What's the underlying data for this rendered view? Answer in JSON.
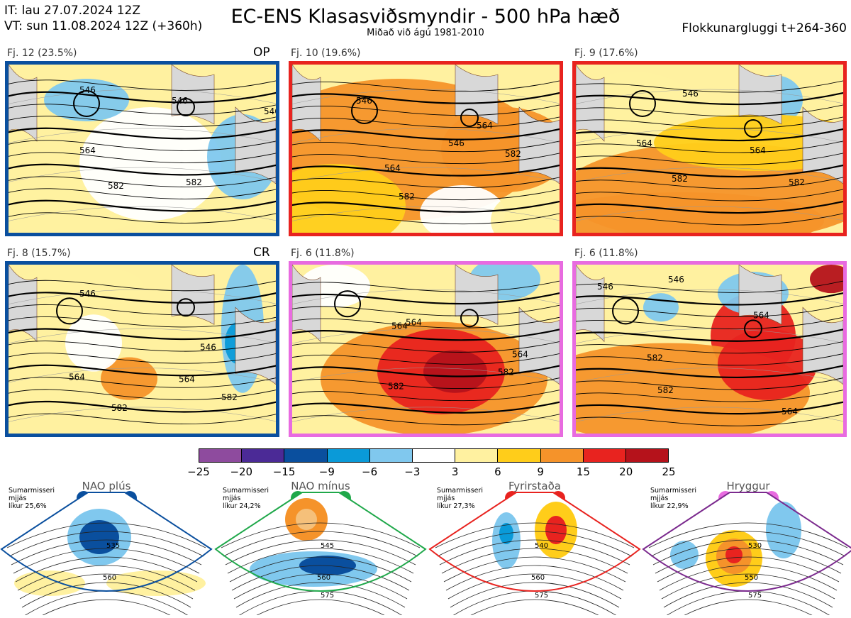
{
  "header": {
    "init_time": "IT: lau 27.07.2024 12Z",
    "valid_time": "VT: sun 11.08.2024 12Z  (+360h)",
    "title": "EC-ENS Klasasviðsmyndir - 500 hPa hæð",
    "subtitle": "Miðað við ágú 1981-2010",
    "window": "Flokkunargluggi t+264-360"
  },
  "panels": [
    {
      "label": "Fj. 12 (23.5%)",
      "tag": "OP",
      "frame_color": "#0a4f9e",
      "contours": [
        "546",
        "564",
        "582",
        "582",
        "546"
      ]
    },
    {
      "label": "Fj. 10 (19.6%)",
      "tag": "",
      "frame_color": "#e8231f",
      "contours": [
        "546",
        "564",
        "582",
        "564",
        "582",
        "546"
      ]
    },
    {
      "label": "Fj. 9 (17.6%)",
      "tag": "",
      "frame_color": "#e8231f",
      "contours": [
        "546",
        "564",
        "582",
        "564",
        "582"
      ]
    },
    {
      "label": "Fj. 8 (15.7%)",
      "tag": "CR",
      "frame_color": "#0a4f9e",
      "contours": [
        "546",
        "564",
        "582",
        "564",
        "582",
        "546"
      ]
    },
    {
      "label": "Fj. 6 (11.8%)",
      "tag": "",
      "frame_color": "#e86be0",
      "contours": [
        "564",
        "564",
        "582",
        "582",
        "564"
      ]
    },
    {
      "label": "Fj. 6 (11.8%)",
      "tag": "",
      "frame_color": "#e86be0",
      "contours": [
        "546",
        "546",
        "564",
        "582",
        "582",
        "564"
      ]
    }
  ],
  "colorbar": {
    "colors": [
      "#8e4b9e",
      "#4b2a96",
      "#0a4f9e",
      "#0a9ad8",
      "#80c8ee",
      "#ffffff",
      "#fff1a0",
      "#ffcd1a",
      "#f5932a",
      "#e8231f",
      "#b5121b"
    ],
    "ticks": [
      "−25",
      "−20",
      "−15",
      "−9",
      "−6",
      "−3",
      "3",
      "6",
      "9",
      "15",
      "20",
      "25"
    ]
  },
  "regimes": [
    {
      "name": "NAO plús",
      "season": "Sumarmisseri",
      "scope": "mjjás",
      "likelihood": "líkur 25,6%",
      "color": "#0a4f9e",
      "frame_color": "#0a4f9e",
      "labels": [
        "535",
        "560"
      ]
    },
    {
      "name": "NAO mínus",
      "season": "Sumarmisseri",
      "scope": "mjjás",
      "likelihood": "líkur 24,2%",
      "color": "#1fa84a",
      "frame_color": "#1fa84a",
      "labels": [
        "545",
        "560",
        "575"
      ]
    },
    {
      "name": "Fyrirstaða",
      "season": "Sumarmisseri",
      "scope": "mjjás",
      "likelihood": "líkur 27,3%",
      "color": "#e8231f",
      "frame_color": "#e8231f",
      "labels": [
        "540",
        "560",
        "575"
      ]
    },
    {
      "name": "Hryggur",
      "season": "Sumarmisseri",
      "scope": "mjjás",
      "likelihood": "líkur 22,9%",
      "color": "#e86be0",
      "frame_color": "#7b2a8e",
      "labels": [
        "530",
        "550",
        "575"
      ]
    }
  ]
}
